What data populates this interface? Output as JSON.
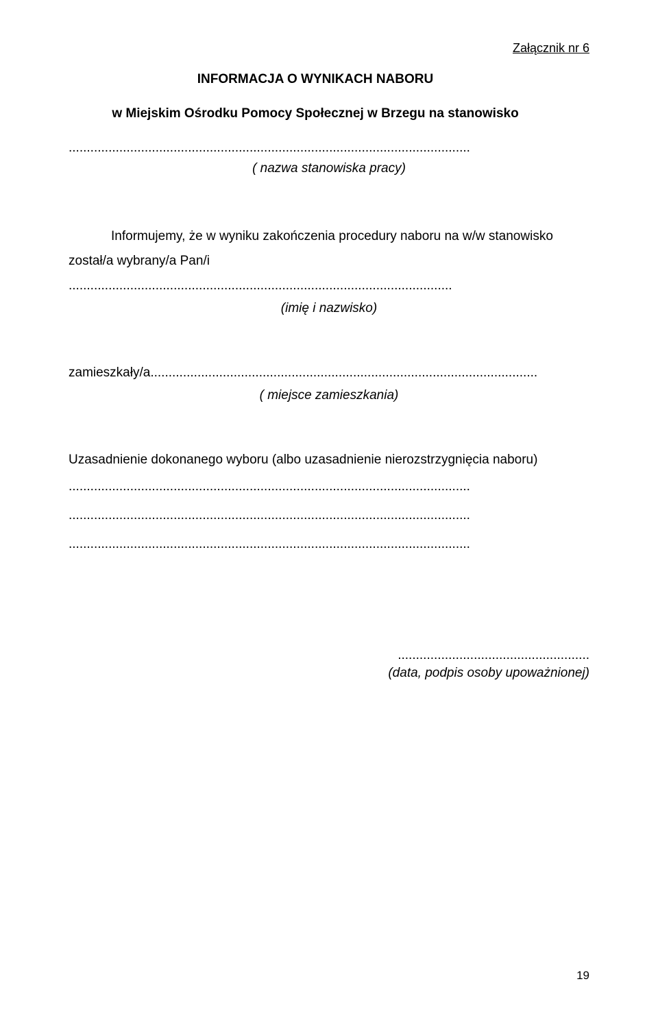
{
  "header": {
    "attachment_label": "Załącznik nr 6"
  },
  "title": "INFORMACJA O WYNIKACH NABORU",
  "subtitle": "w Miejskim Ośrodku Pomocy Społecznej w Brzegu na stanowisko",
  "field_labels": {
    "nazwa_stanowiska": "( nazwa stanowiska pracy)",
    "imie_nazwisko": "(imię i nazwisko)",
    "miejsce_zamieszkania": "( miejsce zamieszkania)",
    "data_podpis": "(data, podpis osoby upoważnionej)"
  },
  "body": {
    "line1": "Informujemy, że w wyniku zakończenia procedury naboru na w/w stanowisko",
    "line2_prefix": "został/a wybrany/a Pan/i ",
    "zamieszkaly_prefix": "zamieszkały/a",
    "uzasadnienie": "Uzasadnienie dokonanego wyboru (albo uzasadnienie nierozstrzygnięcia naboru)"
  },
  "dots": {
    "full_line": "...............................................................................................................",
    "after_pani": "..........................................................................................................",
    "after_zamieszkaly": "...........................................................................................................",
    "signature": "....................................................."
  },
  "page_number": "19"
}
